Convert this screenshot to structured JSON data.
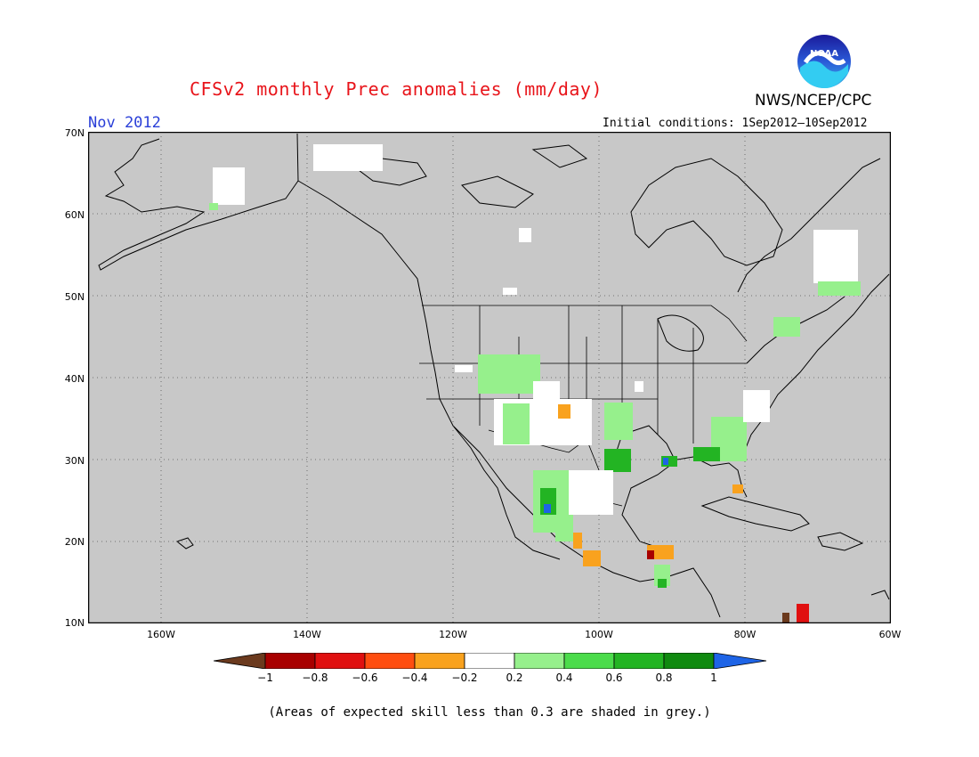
{
  "title": "CFSv2 monthly Prec anomalies (mm/day)",
  "month": "Nov 2012",
  "agency": "NWS/NCEP/CPC",
  "logo_text": "NOAA",
  "initial_conditions": "Initial conditions: 1Sep2012–10Sep2012",
  "footnote": "(Areas of expected skill less than 0.3 are shaded in grey.)",
  "lat_labels": [
    "70N",
    "60N",
    "50N",
    "40N",
    "30N",
    "20N",
    "10N"
  ],
  "lon_labels": [
    "160W",
    "140W",
    "120W",
    "100W",
    "80W",
    "60W"
  ],
  "colorbar": {
    "labels": [
      "−1",
      "−0.8",
      "−0.6",
      "−0.4",
      "−0.2",
      "0.2",
      "0.4",
      "0.6",
      "0.8",
      "1"
    ],
    "colors": [
      "#6b3a1e",
      "#a80000",
      "#e01010",
      "#ff4d10",
      "#f9a21e",
      "#ffffff",
      "#96f08c",
      "#4bdc4b",
      "#23b423",
      "#108a10",
      "#1e64e6"
    ]
  },
  "colors": {
    "title": "#e8141a",
    "month": "#2a3fd8",
    "skill_mask_grey": "#c8c8c8",
    "gridline": "#555555"
  }
}
